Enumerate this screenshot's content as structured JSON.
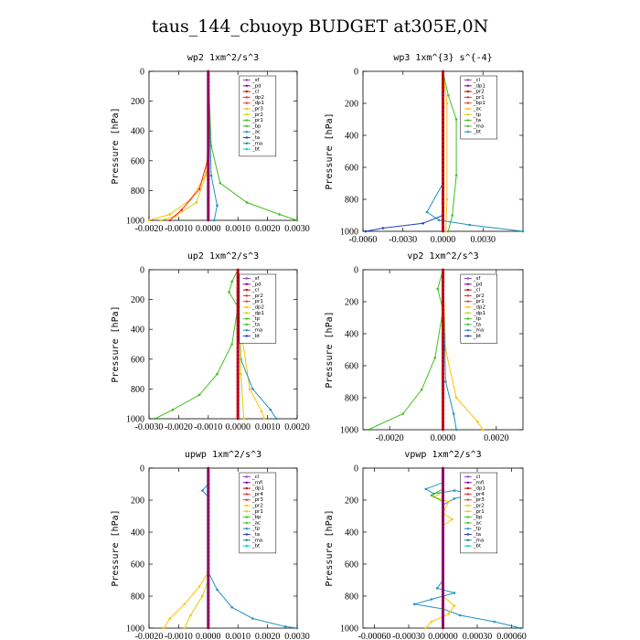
{
  "title": "taus_144_cbuoyp  BUDGET at305E,0N",
  "chart_data": [
    {
      "type": "line",
      "title": "wp2   1xm^2/s^3",
      "ylabel": "Pressure [hPa]",
      "xlim": [
        -0.002,
        0.003
      ],
      "ylim": [
        1000,
        0
      ],
      "x_ticks": [
        "-0.0020",
        "-0.0010",
        "0.0000",
        "0.0010",
        "0.0020",
        "0.0030"
      ],
      "x_tick_values": [
        -0.002,
        -0.001,
        0,
        0.001,
        0.002,
        0.003
      ],
      "y_ticks": [
        0,
        200,
        400,
        600,
        800,
        1000
      ],
      "legend": [
        "_sf",
        "_pd",
        "_cl",
        "_dp2",
        "_dp1",
        "_pr3",
        "_pr2",
        "_pr1",
        "_bp",
        "_ac",
        "_ta",
        "_ma",
        "_bt"
      ],
      "series": [
        {
          "name": "_pr3",
          "color": "#ffc000",
          "points": [
            [
              0,
              0
            ],
            [
              0,
              500
            ],
            [
              -0.0001,
              700
            ],
            [
              -0.0006,
              860
            ],
            [
              -0.0013,
              960
            ],
            [
              -0.002,
              1000
            ]
          ]
        },
        {
          "name": "_pr1",
          "color": "#d8d000",
          "points": [
            [
              0,
              0
            ],
            [
              0,
              650
            ],
            [
              -0.0004,
              880
            ],
            [
              -0.0011,
              970
            ],
            [
              -0.0016,
              1000
            ]
          ]
        },
        {
          "name": "_dp1",
          "color": "#ff2020",
          "points": [
            [
              0,
              0
            ],
            [
              0,
              580
            ],
            [
              -0.0003,
              790
            ],
            [
              -0.0009,
              930
            ],
            [
              -0.0013,
              1000
            ]
          ]
        },
        {
          "name": "_bp",
          "color": "#40c020",
          "points": [
            [
              0,
              0
            ],
            [
              0.0001,
              500
            ],
            [
              0.0004,
              750
            ],
            [
              0.0013,
              880
            ],
            [
              0.0024,
              960
            ],
            [
              0.003,
              1000
            ]
          ]
        },
        {
          "name": "_ac",
          "color": "#2090c0",
          "points": [
            [
              0,
              0
            ],
            [
              0.0001,
              700
            ],
            [
              0.0003,
              900
            ],
            [
              0.0002,
              1000
            ]
          ]
        },
        {
          "name": "_cl",
          "color": "#8000a0",
          "points": [
            [
              0,
              0
            ],
            [
              0,
              1000
            ]
          ]
        }
      ]
    },
    {
      "type": "line",
      "title": "wp3   1xm^{3} s^{-4}",
      "ylabel": "Pressure [hPa]",
      "xlim": [
        -0.006,
        0.006
      ],
      "ylim": [
        1000,
        0
      ],
      "x_ticks": [
        "-0.0060",
        "-0.0030",
        "0.0000",
        "0.0030"
      ],
      "x_tick_values": [
        -0.006,
        -0.003,
        0,
        0.003
      ],
      "y_ticks": [
        0,
        200,
        400,
        600,
        800,
        1000
      ],
      "legend": [
        "_cl",
        "_dp1",
        "_pr2",
        "_pr1",
        "_bp1",
        "_ac",
        "_tp",
        "_ta",
        "_ma",
        "_bt"
      ],
      "series": [
        {
          "name": "_ac",
          "color": "#40c020",
          "points": [
            [
              0,
              0
            ],
            [
              0.0004,
              150
            ],
            [
              0.001,
              300
            ],
            [
              0.001,
              650
            ],
            [
              0.0007,
              900
            ],
            [
              0.0004,
              1000
            ]
          ]
        },
        {
          "name": "_pr1",
          "color": "#ffc000",
          "points": [
            [
              0,
              0
            ],
            [
              0.0003,
              200
            ],
            [
              0.0003,
              800
            ],
            [
              0.0002,
              1000
            ]
          ]
        },
        {
          "name": "_tp",
          "color": "#2090c0",
          "points": [
            [
              0,
              0
            ],
            [
              0,
              700
            ],
            [
              -0.0012,
              880
            ],
            [
              -0.0003,
              930
            ],
            [
              0.002,
              960
            ],
            [
              0.006,
              1000
            ]
          ]
        },
        {
          "name": "_ta",
          "color": "#2040c0",
          "points": [
            [
              0,
              0
            ],
            [
              0,
              900
            ],
            [
              -0.0015,
              950
            ],
            [
              -0.0045,
              980
            ],
            [
              -0.0058,
              1000
            ]
          ]
        },
        {
          "name": "_dp1",
          "color": "#e00000",
          "points": [
            [
              0,
              0
            ],
            [
              0,
              1000
            ]
          ]
        }
      ]
    },
    {
      "type": "line",
      "title": "up2   1xm^2/s^3",
      "ylabel": "Pressure [hPa]",
      "xlim": [
        -0.003,
        0.002
      ],
      "ylim": [
        1000,
        0
      ],
      "x_ticks": [
        "-0.0030",
        "-0.0020",
        "-0.0010",
        "0.0000",
        "0.0010",
        "0.0020"
      ],
      "x_tick_values": [
        -0.003,
        -0.002,
        -0.001,
        0,
        0.001,
        0.002
      ],
      "y_ticks": [
        0,
        200,
        400,
        600,
        800,
        1000
      ],
      "legend": [
        "_sf",
        "_pd",
        "_cl",
        "_pr2",
        "_pr1",
        "_dp2",
        "_dp1",
        "_tp",
        "_ta",
        "_ma",
        "_bt"
      ],
      "series": [
        {
          "name": "_dp1",
          "color": "#40c020",
          "points": [
            [
              0,
              0
            ],
            [
              -0.0002,
              80
            ],
            [
              -0.0003,
              150
            ],
            [
              0,
              250
            ],
            [
              -0.0002,
              500
            ],
            [
              -0.0007,
              700
            ],
            [
              -0.0013,
              840
            ],
            [
              -0.0022,
              940
            ],
            [
              -0.0028,
              1000
            ]
          ]
        },
        {
          "name": "_pr1",
          "color": "#ffc000",
          "points": [
            [
              0,
              0
            ],
            [
              0.0001,
              400
            ],
            [
              0.0004,
              800
            ],
            [
              0.0008,
              950
            ],
            [
              0.0009,
              1000
            ]
          ]
        },
        {
          "name": "_tp",
          "color": "#2090c0",
          "points": [
            [
              0,
              0
            ],
            [
              0.0001,
              600
            ],
            [
              0.0005,
              800
            ],
            [
              0.0011,
              940
            ],
            [
              0.0013,
              1000
            ]
          ]
        },
        {
          "name": "_pr2",
          "color": "#d8d000",
          "points": [
            [
              0,
              0
            ],
            [
              0.0001,
              700
            ],
            [
              0.0002,
              1000
            ]
          ]
        },
        {
          "name": "_cl",
          "color": "#e00000",
          "points": [
            [
              0,
              0
            ],
            [
              0,
              1000
            ]
          ]
        }
      ]
    },
    {
      "type": "line",
      "title": "vp2   1xm^2/s^3",
      "ylabel": "Pressure [hPa]",
      "xlim": [
        -0.003,
        0.003
      ],
      "ylim": [
        1000,
        0
      ],
      "x_ticks": [
        "-0.0020",
        "0.0000",
        "0.0020"
      ],
      "x_tick_values": [
        -0.002,
        0,
        0.002
      ],
      "y_ticks": [
        0,
        200,
        400,
        600,
        800,
        1000
      ],
      "legend": [
        "_sf",
        "_pd",
        "_cl",
        "_pr2",
        "_pr1",
        "_dp2",
        "_dp1",
        "_tp",
        "_ta",
        "_ma",
        "_bt"
      ],
      "series": [
        {
          "name": "_dp1",
          "color": "#40c020",
          "points": [
            [
              0,
              0
            ],
            [
              -0.0002,
              120
            ],
            [
              0,
              250
            ],
            [
              -0.0003,
              550
            ],
            [
              -0.0008,
              750
            ],
            [
              -0.0015,
              900
            ],
            [
              -0.0028,
              1000
            ]
          ]
        },
        {
          "name": "_pr1",
          "color": "#ffc000",
          "points": [
            [
              0,
              0
            ],
            [
              0.0001,
              500
            ],
            [
              0.0005,
              800
            ],
            [
              0.0013,
              950
            ],
            [
              0.0015,
              1000
            ]
          ]
        },
        {
          "name": "_tp",
          "color": "#2090c0",
          "points": [
            [
              0,
              0
            ],
            [
              0.0001,
              700
            ],
            [
              0.0004,
              900
            ],
            [
              0.0005,
              1000
            ]
          ]
        },
        {
          "name": "_cl",
          "color": "#e00000",
          "points": [
            [
              0,
              0
            ],
            [
              0,
              1000
            ]
          ]
        }
      ]
    },
    {
      "type": "line",
      "title": "upwp   1xm^2/s^3",
      "ylabel": "Pressure [hPa]",
      "xlim": [
        -0.002,
        0.003
      ],
      "ylim": [
        1000,
        0
      ],
      "x_ticks": [
        "-0.0020",
        "-0.0010",
        "0.0000",
        "0.0010",
        "0.0020",
        "0.0030"
      ],
      "x_tick_values": [
        -0.002,
        -0.001,
        0,
        0.001,
        0.002,
        0.003
      ],
      "y_ticks": [
        0,
        200,
        400,
        600,
        800,
        1000
      ],
      "legend": [
        "_cl",
        "_mfl",
        "_dp1",
        "_pr4",
        "_pr3",
        "_pr2",
        "_pr1",
        "_bp",
        "_ac",
        "_tp",
        "_ta",
        "_ma",
        "_bt"
      ],
      "series": [
        {
          "name": "_tp",
          "color": "#2090c0",
          "points": [
            [
              0,
              0
            ],
            [
              0,
              100
            ],
            [
              -0.0002,
              140
            ],
            [
              0,
              180
            ],
            [
              0,
              650
            ],
            [
              0.0003,
              760
            ],
            [
              0.0008,
              870
            ],
            [
              0.0015,
              940
            ],
            [
              0.0026,
              990
            ],
            [
              0.003,
              1000
            ]
          ]
        },
        {
          "name": "_pr1",
          "color": "#ffc000",
          "points": [
            [
              0,
              0
            ],
            [
              0,
              650
            ],
            [
              -0.0003,
              740
            ],
            [
              -0.0008,
              850
            ],
            [
              -0.0013,
              940
            ],
            [
              -0.0015,
              1000
            ]
          ]
        },
        {
          "name": "_pr2",
          "color": "#d8d000",
          "points": [
            [
              0,
              0
            ],
            [
              0,
              700
            ],
            [
              -0.0002,
              800
            ],
            [
              -0.0006,
              920
            ],
            [
              -0.0008,
              1000
            ]
          ]
        },
        {
          "name": "_cl",
          "color": "#8000a0",
          "points": [
            [
              0,
              0
            ],
            [
              0,
              1000
            ]
          ]
        }
      ]
    },
    {
      "type": "line",
      "title": "vpwp   1xm^2/s^3",
      "ylabel": "Pressure [hPa]",
      "xlim": [
        -0.0007,
        0.0007
      ],
      "ylim": [
        1000,
        0
      ],
      "x_ticks": [
        "-0.00060",
        "-0.00030",
        "0.00000",
        "0.00030",
        "0.00060"
      ],
      "x_tick_values": [
        -0.0006,
        -0.0003,
        0,
        0.0003,
        0.0006
      ],
      "y_ticks": [
        0,
        200,
        400,
        600,
        800,
        1000
      ],
      "legend": [
        "_cl",
        "_mfl",
        "_dp1",
        "_pr4",
        "_pr3",
        "_pr2",
        "_pr1",
        "_bp",
        "_ac",
        "_tp",
        "_ta",
        "_ma",
        "_bt"
      ],
      "series": [
        {
          "name": "_tp",
          "color": "#2090c0",
          "points": [
            [
              0,
              0
            ],
            [
              0,
              90
            ],
            [
              -0.00015,
              130
            ],
            [
              -8e-05,
              160
            ],
            [
              0.0001,
              140
            ],
            [
              0.00028,
              160
            ],
            [
              0.0001,
              190
            ],
            [
              0,
              230
            ],
            [
              0,
              700
            ],
            [
              -5e-05,
              750
            ],
            [
              0.0001,
              780
            ],
            [
              -0.0001,
              820
            ],
            [
              -0.00025,
              850
            ],
            [
              0,
              880
            ],
            [
              0.00015,
              920
            ],
            [
              0.00045,
              960
            ],
            [
              0.00068,
              1000
            ]
          ]
        },
        {
          "name": "_pr1",
          "color": "#ffc000",
          "points": [
            [
              0,
              0
            ],
            [
              0,
              150
            ],
            [
              -8e-05,
              180
            ],
            [
              5e-05,
              210
            ],
            [
              0,
              280
            ],
            [
              8e-05,
              320
            ],
            [
              0,
              360
            ],
            [
              0,
              800
            ],
            [
              0.0001,
              860
            ],
            [
              5e-05,
              910
            ],
            [
              -0.0001,
              960
            ],
            [
              -0.00015,
              1000
            ]
          ]
        },
        {
          "name": "_ac",
          "color": "#40c020",
          "points": [
            [
              0,
              0
            ],
            [
              0,
              130
            ],
            [
              -0.0001,
              170
            ],
            [
              0,
              210
            ],
            [
              0,
              1000
            ]
          ]
        },
        {
          "name": "_cl",
          "color": "#8000a0",
          "points": [
            [
              0,
              0
            ],
            [
              0,
              1000
            ]
          ]
        }
      ]
    }
  ]
}
